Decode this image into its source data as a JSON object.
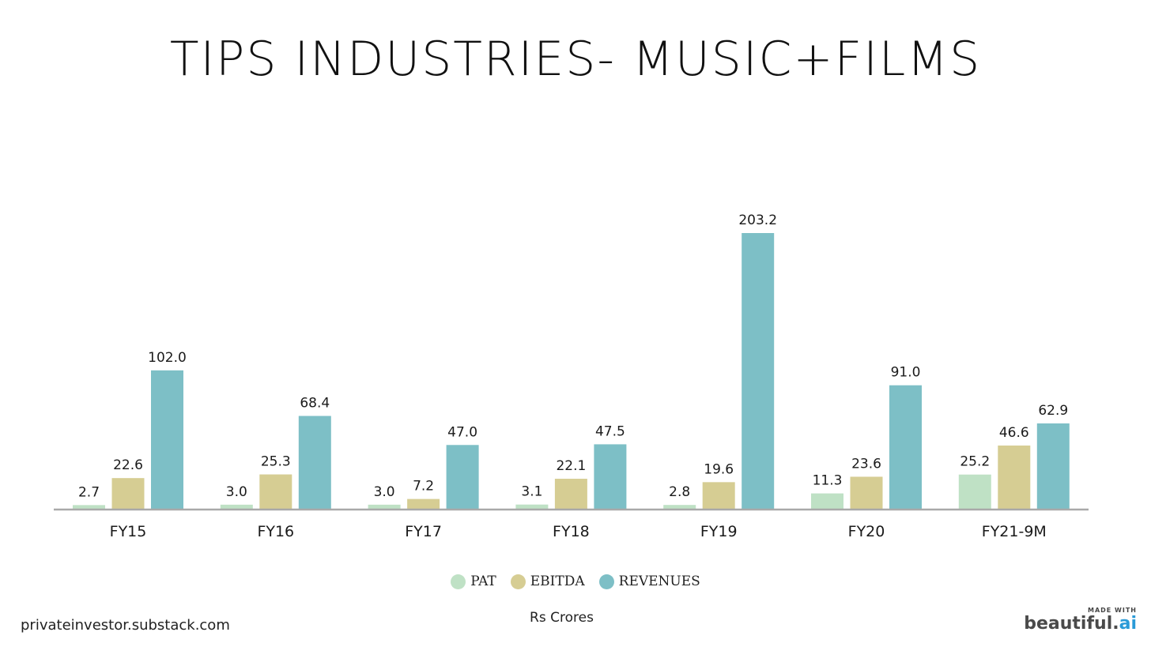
{
  "title": "TIPS INDUSTRIES- MUSIC+FILMS",
  "units_label": "Rs Crores",
  "footer": {
    "source": "privateinvestor.substack.com",
    "badge_small": "MADE WITH",
    "badge_brand": "beautiful",
    "badge_dot": ".",
    "badge_ai": "ai"
  },
  "chart_data": {
    "type": "bar",
    "title": "TIPS INDUSTRIES- MUSIC+FILMS",
    "xlabel": "",
    "ylabel": "",
    "ylim": [
      0,
      203.2
    ],
    "grid": false,
    "legend_placement": "bottom-center",
    "categories": [
      "FY15",
      "FY16",
      "FY17",
      "FY18",
      "FY19",
      "FY20",
      "FY21-9M"
    ],
    "series": [
      {
        "name": "PAT",
        "color": "#bfe1c5",
        "values": [
          2.7,
          3.0,
          3.0,
          3.1,
          2.8,
          11.3,
          25.2
        ],
        "labels": [
          "2.7",
          "3.0",
          "3.0",
          "3.1",
          "2.8",
          "11.3",
          "25.2"
        ]
      },
      {
        "name": "EBITDA",
        "color": "#d6cd93",
        "values": [
          22.6,
          25.3,
          7.2,
          22.1,
          19.6,
          23.6,
          46.6
        ],
        "labels": [
          "22.6",
          "25.3",
          "7.2",
          "22.1",
          "19.6",
          "23.6",
          "46.6"
        ]
      },
      {
        "name": "REVENUES",
        "color": "#7dbfc6",
        "values": [
          102.0,
          68.4,
          47.0,
          47.5,
          203.2,
          91.0,
          62.9
        ],
        "labels": [
          "102.0",
          "68.4",
          "47.0",
          "47.5",
          "203.2",
          "91.0",
          "62.9"
        ]
      }
    ]
  }
}
